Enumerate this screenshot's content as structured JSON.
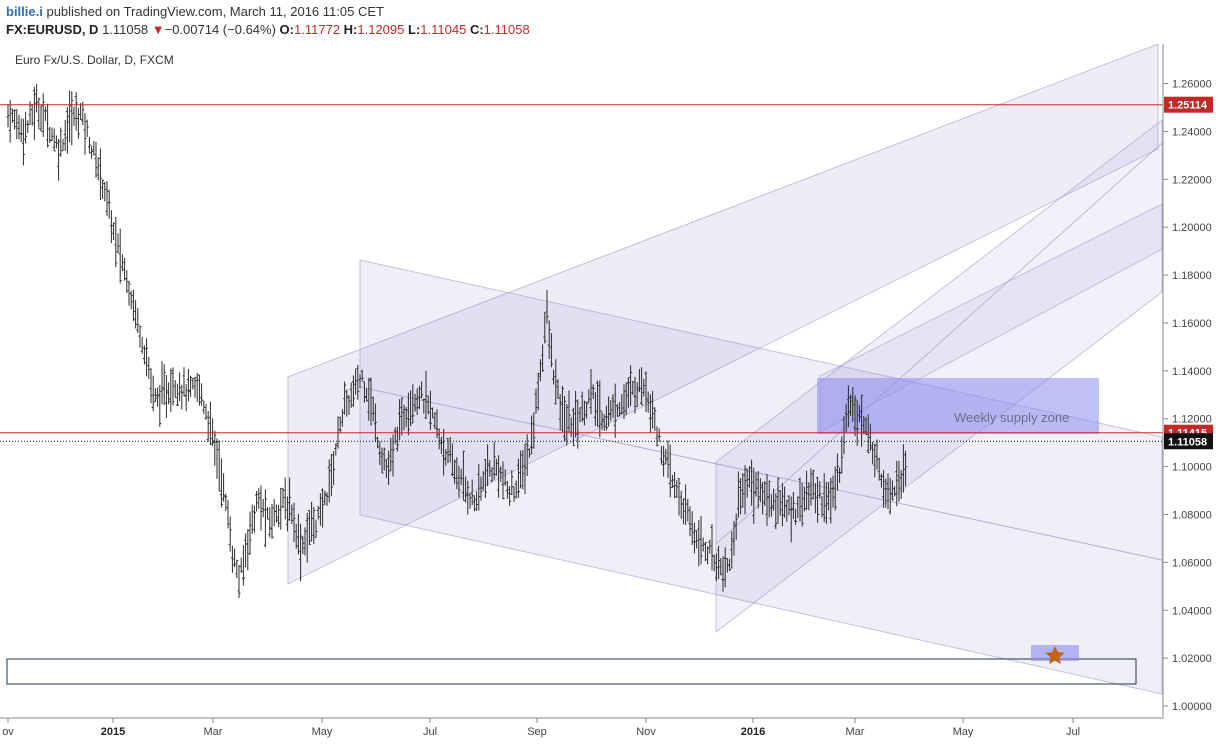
{
  "header": {
    "author": "billie.i",
    "published_text": "published on TradingView.com, March 11, 2016 11:05 CET",
    "symbol": "FX:EURUSD, D",
    "last": "1.11058",
    "change_arrow": "▼",
    "change": "−0.00714 (−0.64%)",
    "open_label": "O:",
    "open": "1.11772",
    "high_label": "H:",
    "high": "1.12095",
    "low_label": "L:",
    "low": "1.11045",
    "close_label": "C:",
    "close": "1.11058"
  },
  "colors": {
    "price_line": "#c62828",
    "label_red": "#c62828",
    "label_dark": "#111111",
    "channel_fill": "#8c84c6",
    "zone_fill": "#8c8cf0",
    "star": "#c0651a"
  },
  "chart_data": {
    "type": "ohlc",
    "title": "Euro Fx/U.S. Dollar, D, FXCM",
    "ylim": [
      0.995,
      1.2765
    ],
    "y_ticks": [
      "1.26000",
      "1.24000",
      "1.22000",
      "1.20000",
      "1.18000",
      "1.16000",
      "1.14000",
      "1.12000",
      "1.10000",
      "1.08000",
      "1.06000",
      "1.04000",
      "1.02000",
      "1.00000"
    ],
    "x_ticks": [
      "ov",
      "2015",
      "Mar",
      "May",
      "Jul",
      "Sep",
      "Nov",
      "2016",
      "Mar",
      "May",
      "Jul"
    ],
    "x_ticks_bold": [
      "2015",
      "2016"
    ],
    "price_lines": [
      {
        "label": "1.25114",
        "value": 1.25114,
        "style": "solid"
      },
      {
        "label": "1.11415",
        "value": 1.11415,
        "style": "solid"
      },
      {
        "label": "1.11058",
        "value": 1.11058,
        "style": "dotted"
      }
    ],
    "annotation": "Weekly supply zone",
    "price_path": [
      [
        0.0,
        1.247
      ],
      [
        0.015,
        1.24
      ],
      [
        0.025,
        1.251
      ],
      [
        0.035,
        1.244
      ],
      [
        0.045,
        1.232
      ],
      [
        0.055,
        1.245
      ],
      [
        0.065,
        1.248
      ],
      [
        0.075,
        1.232
      ],
      [
        0.085,
        1.218
      ],
      [
        0.095,
        1.195
      ],
      [
        0.105,
        1.18
      ],
      [
        0.113,
        1.165
      ],
      [
        0.122,
        1.148
      ],
      [
        0.13,
        1.128
      ],
      [
        0.138,
        1.13
      ],
      [
        0.148,
        1.135
      ],
      [
        0.16,
        1.131
      ],
      [
        0.17,
        1.133
      ],
      [
        0.18,
        1.116
      ],
      [
        0.188,
        1.1
      ],
      [
        0.195,
        1.08
      ],
      [
        0.2,
        1.062
      ],
      [
        0.206,
        1.052
      ],
      [
        0.213,
        1.07
      ],
      [
        0.222,
        1.086
      ],
      [
        0.232,
        1.076
      ],
      [
        0.242,
        1.085
      ],
      [
        0.252,
        1.082
      ],
      [
        0.26,
        1.066
      ],
      [
        0.268,
        1.074
      ],
      [
        0.278,
        1.08
      ],
      [
        0.288,
        1.098
      ],
      [
        0.296,
        1.122
      ],
      [
        0.305,
        1.129
      ],
      [
        0.314,
        1.138
      ],
      [
        0.322,
        1.128
      ],
      [
        0.33,
        1.108
      ],
      [
        0.338,
        1.097
      ],
      [
        0.346,
        1.115
      ],
      [
        0.356,
        1.127
      ],
      [
        0.365,
        1.13
      ],
      [
        0.375,
        1.124
      ],
      [
        0.385,
        1.11
      ],
      [
        0.395,
        1.1
      ],
      [
        0.405,
        1.092
      ],
      [
        0.415,
        1.085
      ],
      [
        0.425,
        1.097
      ],
      [
        0.435,
        1.1
      ],
      [
        0.445,
        1.088
      ],
      [
        0.455,
        1.095
      ],
      [
        0.465,
        1.11
      ],
      [
        0.474,
        1.145
      ],
      [
        0.478,
        1.165
      ],
      [
        0.484,
        1.14
      ],
      [
        0.492,
        1.121
      ],
      [
        0.5,
        1.118
      ],
      [
        0.51,
        1.123
      ],
      [
        0.518,
        1.13
      ],
      [
        0.528,
        1.12
      ],
      [
        0.538,
        1.124
      ],
      [
        0.548,
        1.128
      ],
      [
        0.556,
        1.132
      ],
      [
        0.564,
        1.135
      ],
      [
        0.572,
        1.125
      ],
      [
        0.58,
        1.107
      ],
      [
        0.59,
        1.094
      ],
      [
        0.6,
        1.083
      ],
      [
        0.61,
        1.072
      ],
      [
        0.62,
        1.066
      ],
      [
        0.63,
        1.06
      ],
      [
        0.638,
        1.057
      ],
      [
        0.644,
        1.067
      ],
      [
        0.65,
        1.09
      ],
      [
        0.658,
        1.094
      ],
      [
        0.666,
        1.09
      ],
      [
        0.676,
        1.086
      ],
      [
        0.686,
        1.085
      ],
      [
        0.695,
        1.08
      ],
      [
        0.705,
        1.087
      ],
      [
        0.715,
        1.09
      ],
      [
        0.723,
        1.087
      ],
      [
        0.731,
        1.085
      ],
      [
        0.739,
        1.1
      ],
      [
        0.745,
        1.124
      ],
      [
        0.751,
        1.127
      ],
      [
        0.757,
        1.12
      ],
      [
        0.764,
        1.113
      ],
      [
        0.772,
        1.102
      ],
      [
        0.78,
        1.09
      ],
      [
        0.788,
        1.092
      ],
      [
        0.795,
        1.098
      ],
      [
        0.8,
        1.111
      ]
    ]
  }
}
